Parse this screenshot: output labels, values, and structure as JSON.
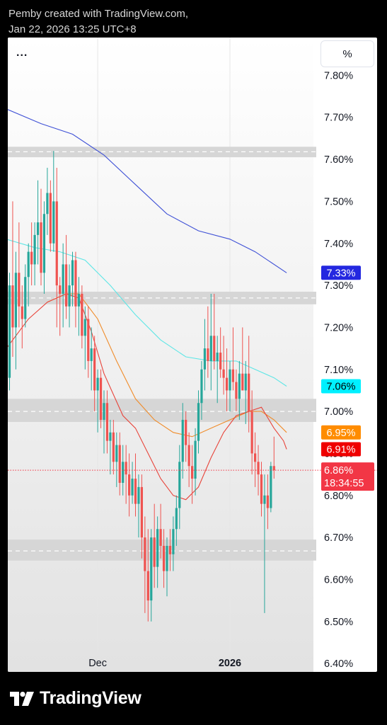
{
  "header": {
    "line1": "Pemby created with TradingView.com,",
    "line2": "Jan 22, 2026 13:25 UTC+8"
  },
  "toolbar": {
    "menu_label": "...",
    "scale_label": "%"
  },
  "footer": {
    "brand": "TradingView"
  },
  "colors": {
    "up": "#26a69a",
    "down": "#ef5350",
    "ma_blue": "#3f51d6",
    "ma_cyan": "#5ee6e6",
    "ma_orange": "#f08c2a",
    "ma_red": "#e8443a",
    "zone": "#d6d6d6",
    "last_price": "#f23645"
  },
  "chart_data": {
    "type": "candlestick",
    "ylim": [
      6.38,
      7.89
    ],
    "y_ticks": [
      "7.80%",
      "7.70%",
      "7.60%",
      "7.50%",
      "7.40%",
      "7.30%",
      "7.20%",
      "7.10%",
      "7.00%",
      "6.90%",
      "6.80%",
      "6.70%",
      "6.60%",
      "6.50%",
      "6.40%"
    ],
    "y_tick_values": [
      7.8,
      7.7,
      7.6,
      7.5,
      7.4,
      7.3,
      7.2,
      7.1,
      7.0,
      6.9,
      6.8,
      6.7,
      6.6,
      6.5,
      6.4
    ],
    "x_labels": [
      {
        "label": "Dec",
        "index": 28,
        "bold": false
      },
      {
        "label": "2026",
        "index": 70,
        "bold": true
      }
    ],
    "candles": [
      {
        "o": 7.08,
        "h": 7.33,
        "l": 7.05,
        "c": 7.3
      },
      {
        "o": 7.3,
        "h": 7.5,
        "l": 7.13,
        "c": 7.2
      },
      {
        "o": 7.2,
        "h": 7.38,
        "l": 7.1,
        "c": 7.33
      },
      {
        "o": 7.33,
        "h": 7.45,
        "l": 7.2,
        "c": 7.25
      },
      {
        "o": 7.25,
        "h": 7.3,
        "l": 7.15,
        "c": 7.22
      },
      {
        "o": 7.22,
        "h": 7.35,
        "l": 7.2,
        "c": 7.32
      },
      {
        "o": 7.32,
        "h": 7.4,
        "l": 7.25,
        "c": 7.38
      },
      {
        "o": 7.38,
        "h": 7.45,
        "l": 7.3,
        "c": 7.35
      },
      {
        "o": 7.35,
        "h": 7.45,
        "l": 7.3,
        "c": 7.42
      },
      {
        "o": 7.42,
        "h": 7.55,
        "l": 7.35,
        "c": 7.45
      },
      {
        "o": 7.45,
        "h": 7.53,
        "l": 7.3,
        "c": 7.33
      },
      {
        "o": 7.33,
        "h": 7.5,
        "l": 7.28,
        "c": 7.47
      },
      {
        "o": 7.47,
        "h": 7.58,
        "l": 7.42,
        "c": 7.52
      },
      {
        "o": 7.52,
        "h": 7.55,
        "l": 7.38,
        "c": 7.4
      },
      {
        "o": 7.4,
        "h": 7.62,
        "l": 7.38,
        "c": 7.5
      },
      {
        "o": 7.5,
        "h": 7.58,
        "l": 7.2,
        "c": 7.3
      },
      {
        "o": 7.3,
        "h": 7.32,
        "l": 7.18,
        "c": 7.28
      },
      {
        "o": 7.28,
        "h": 7.4,
        "l": 7.2,
        "c": 7.35
      },
      {
        "o": 7.35,
        "h": 7.42,
        "l": 7.22,
        "c": 7.25
      },
      {
        "o": 7.25,
        "h": 7.35,
        "l": 7.2,
        "c": 7.3
      },
      {
        "o": 7.3,
        "h": 7.38,
        "l": 7.25,
        "c": 7.36
      },
      {
        "o": 7.36,
        "h": 7.38,
        "l": 7.2,
        "c": 7.25
      },
      {
        "o": 7.25,
        "h": 7.32,
        "l": 7.18,
        "c": 7.28
      },
      {
        "o": 7.28,
        "h": 7.3,
        "l": 7.15,
        "c": 7.18
      },
      {
        "o": 7.18,
        "h": 7.25,
        "l": 7.1,
        "c": 7.22
      },
      {
        "o": 7.22,
        "h": 7.25,
        "l": 7.08,
        "c": 7.12
      },
      {
        "o": 7.12,
        "h": 7.2,
        "l": 7.05,
        "c": 7.15
      },
      {
        "o": 7.15,
        "h": 7.18,
        "l": 7.0,
        "c": 7.05
      },
      {
        "o": 7.05,
        "h": 7.1,
        "l": 6.95,
        "c": 7.08
      },
      {
        "o": 7.08,
        "h": 7.1,
        "l": 6.96,
        "c": 6.98
      },
      {
        "o": 6.98,
        "h": 7.05,
        "l": 6.9,
        "c": 7.02
      },
      {
        "o": 7.02,
        "h": 7.05,
        "l": 6.9,
        "c": 6.93
      },
      {
        "o": 6.93,
        "h": 6.98,
        "l": 6.85,
        "c": 6.95
      },
      {
        "o": 6.95,
        "h": 6.98,
        "l": 6.85,
        "c": 6.88
      },
      {
        "o": 6.88,
        "h": 6.95,
        "l": 6.82,
        "c": 6.92
      },
      {
        "o": 6.92,
        "h": 6.95,
        "l": 6.8,
        "c": 6.83
      },
      {
        "o": 6.83,
        "h": 6.92,
        "l": 6.8,
        "c": 6.88
      },
      {
        "o": 6.88,
        "h": 6.92,
        "l": 6.78,
        "c": 6.85
      },
      {
        "o": 6.85,
        "h": 6.9,
        "l": 6.75,
        "c": 6.8
      },
      {
        "o": 6.8,
        "h": 6.88,
        "l": 6.78,
        "c": 6.84
      },
      {
        "o": 6.84,
        "h": 6.9,
        "l": 6.75,
        "c": 6.78
      },
      {
        "o": 6.78,
        "h": 6.85,
        "l": 6.7,
        "c": 6.82
      },
      {
        "o": 6.82,
        "h": 6.85,
        "l": 6.65,
        "c": 6.7
      },
      {
        "o": 6.7,
        "h": 6.75,
        "l": 6.52,
        "c": 6.62
      },
      {
        "o": 6.62,
        "h": 6.72,
        "l": 6.5,
        "c": 6.55
      },
      {
        "o": 6.55,
        "h": 6.72,
        "l": 6.5,
        "c": 6.7
      },
      {
        "o": 6.7,
        "h": 6.78,
        "l": 6.58,
        "c": 6.63
      },
      {
        "o": 6.63,
        "h": 6.75,
        "l": 6.58,
        "c": 6.72
      },
      {
        "o": 6.72,
        "h": 6.78,
        "l": 6.65,
        "c": 6.68
      },
      {
        "o": 6.68,
        "h": 6.72,
        "l": 6.58,
        "c": 6.62
      },
      {
        "o": 6.62,
        "h": 6.7,
        "l": 6.56,
        "c": 6.68
      },
      {
        "o": 6.68,
        "h": 6.72,
        "l": 6.62,
        "c": 6.66
      },
      {
        "o": 6.66,
        "h": 6.75,
        "l": 6.62,
        "c": 6.72
      },
      {
        "o": 6.72,
        "h": 6.8,
        "l": 6.68,
        "c": 6.77
      },
      {
        "o": 6.77,
        "h": 6.92,
        "l": 6.72,
        "c": 6.88
      },
      {
        "o": 6.88,
        "h": 7.02,
        "l": 6.84,
        "c": 6.98
      },
      {
        "o": 6.98,
        "h": 7.0,
        "l": 6.88,
        "c": 6.92
      },
      {
        "o": 6.92,
        "h": 6.95,
        "l": 6.82,
        "c": 6.87
      },
      {
        "o": 6.87,
        "h": 6.92,
        "l": 6.78,
        "c": 6.84
      },
      {
        "o": 6.84,
        "h": 6.96,
        "l": 6.8,
        "c": 6.93
      },
      {
        "o": 6.93,
        "h": 7.05,
        "l": 6.9,
        "c": 7.02
      },
      {
        "o": 7.02,
        "h": 7.12,
        "l": 6.98,
        "c": 7.1
      },
      {
        "o": 7.1,
        "h": 7.22,
        "l": 7.05,
        "c": 7.15
      },
      {
        "o": 7.15,
        "h": 7.25,
        "l": 7.08,
        "c": 7.12
      },
      {
        "o": 7.12,
        "h": 7.28,
        "l": 7.05,
        "c": 7.18
      },
      {
        "o": 7.18,
        "h": 7.28,
        "l": 7.1,
        "c": 7.12
      },
      {
        "o": 7.12,
        "h": 7.18,
        "l": 7.02,
        "c": 7.14
      },
      {
        "o": 7.14,
        "h": 7.2,
        "l": 7.08,
        "c": 7.1
      },
      {
        "o": 7.1,
        "h": 7.18,
        "l": 7.04,
        "c": 7.08
      },
      {
        "o": 7.08,
        "h": 7.15,
        "l": 7.0,
        "c": 7.05
      },
      {
        "o": 7.05,
        "h": 7.12,
        "l": 7.0,
        "c": 7.1
      },
      {
        "o": 7.1,
        "h": 7.2,
        "l": 7.05,
        "c": 7.07
      },
      {
        "o": 7.07,
        "h": 7.1,
        "l": 7.0,
        "c": 7.03
      },
      {
        "o": 7.03,
        "h": 7.12,
        "l": 6.98,
        "c": 7.09
      },
      {
        "o": 7.09,
        "h": 7.2,
        "l": 7.05,
        "c": 7.05
      },
      {
        "o": 7.05,
        "h": 7.12,
        "l": 6.97,
        "c": 7.09
      },
      {
        "o": 7.09,
        "h": 7.18,
        "l": 6.95,
        "c": 7.0
      },
      {
        "o": 7.0,
        "h": 7.05,
        "l": 6.85,
        "c": 6.9
      },
      {
        "o": 6.9,
        "h": 6.95,
        "l": 6.82,
        "c": 6.88
      },
      {
        "o": 6.88,
        "h": 6.92,
        "l": 6.8,
        "c": 6.85
      },
      {
        "o": 6.85,
        "h": 6.88,
        "l": 6.75,
        "c": 6.78
      },
      {
        "o": 6.78,
        "h": 6.85,
        "l": 6.52,
        "c": 6.8
      },
      {
        "o": 6.8,
        "h": 6.85,
        "l": 6.72,
        "c": 6.77
      },
      {
        "o": 6.77,
        "h": 6.88,
        "l": 6.76,
        "c": 6.87
      },
      {
        "o": 6.87,
        "h": 6.94,
        "l": 6.84,
        "c": 6.86
      }
    ],
    "ma_lines": [
      {
        "name": "ma_blue",
        "points": [
          [
            -1,
            7.72
          ],
          [
            10,
            7.685
          ],
          [
            20,
            7.66
          ],
          [
            30,
            7.61
          ],
          [
            40,
            7.54
          ],
          [
            50,
            7.47
          ],
          [
            60,
            7.43
          ],
          [
            70,
            7.41
          ],
          [
            78,
            7.38
          ],
          [
            88,
            7.33
          ]
        ]
      },
      {
        "name": "ma_cyan",
        "points": [
          [
            -1,
            7.41
          ],
          [
            8,
            7.39
          ],
          [
            16,
            7.38
          ],
          [
            24,
            7.36
          ],
          [
            32,
            7.3
          ],
          [
            40,
            7.23
          ],
          [
            48,
            7.17
          ],
          [
            56,
            7.13
          ],
          [
            64,
            7.12
          ],
          [
            72,
            7.12
          ],
          [
            78,
            7.1
          ],
          [
            84,
            7.08
          ],
          [
            88,
            7.06
          ]
        ]
      },
      {
        "name": "ma_orange",
        "points": [
          [
            12,
            7.26
          ],
          [
            18,
            7.28
          ],
          [
            22,
            7.28
          ],
          [
            28,
            7.22
          ],
          [
            34,
            7.12
          ],
          [
            40,
            7.03
          ],
          [
            46,
            6.98
          ],
          [
            52,
            6.95
          ],
          [
            58,
            6.94
          ],
          [
            64,
            6.96
          ],
          [
            70,
            6.98
          ],
          [
            76,
            7.0
          ],
          [
            80,
            7.0
          ],
          [
            84,
            6.98
          ],
          [
            88,
            6.95
          ]
        ]
      },
      {
        "name": "ma_red",
        "points": [
          [
            -1,
            7.15
          ],
          [
            6,
            7.22
          ],
          [
            12,
            7.26
          ],
          [
            18,
            7.28
          ],
          [
            22,
            7.27
          ],
          [
            26,
            7.19
          ],
          [
            30,
            7.09
          ],
          [
            36,
            6.99
          ],
          [
            40,
            6.96
          ],
          [
            44,
            6.9
          ],
          [
            48,
            6.84
          ],
          [
            52,
            6.8
          ],
          [
            56,
            6.79
          ],
          [
            60,
            6.82
          ],
          [
            64,
            6.89
          ],
          [
            68,
            6.95
          ],
          [
            72,
            6.99
          ],
          [
            76,
            7.0
          ],
          [
            80,
            7.01
          ],
          [
            84,
            6.96
          ],
          [
            87,
            6.93
          ],
          [
            88,
            6.91
          ]
        ]
      }
    ],
    "zones": [
      {
        "low": 7.605,
        "high": 7.63,
        "mid": 7.618
      },
      {
        "low": 7.255,
        "high": 7.285,
        "mid": 7.27
      },
      {
        "low": 6.975,
        "high": 7.03,
        "mid": 7.0
      },
      {
        "low": 6.645,
        "high": 6.695,
        "mid": 6.668
      }
    ],
    "last_price": 6.86,
    "badges": [
      {
        "value": 7.33,
        "text": "7.33%",
        "bg": "#2428e0",
        "fg": "#ffffff"
      },
      {
        "value": 7.06,
        "text": "7.06%",
        "bg": "#00f0ff",
        "fg": "#000000"
      },
      {
        "value": 6.95,
        "text": "6.95%",
        "bg": "#ff8c00",
        "fg": "#ffffff"
      },
      {
        "value": 6.91,
        "text": "6.91%",
        "bg": "#ef0000",
        "fg": "#ffffff"
      }
    ],
    "last_badge": {
      "value": 6.86,
      "text": "6.86%",
      "countdown": "18:34:55",
      "bg": "#f23645",
      "fg": "#ffffff"
    }
  }
}
